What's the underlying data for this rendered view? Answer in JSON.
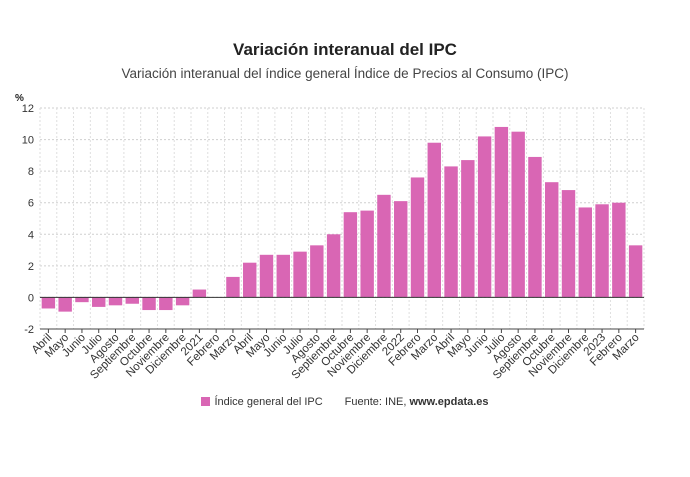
{
  "title": "Variación interanual del IPC",
  "subtitle": "Variación interanual del índice general Índice de Precios al Consumo (IPC)",
  "legend": {
    "label": "Índice general del IPC",
    "color": "#d966b4"
  },
  "source": {
    "prefix": "Fuente: INE, ",
    "site": "www.epdata.es"
  },
  "chart_data": {
    "type": "bar",
    "title": "Variación interanual del IPC",
    "ylabel": "%",
    "xlabel": "",
    "ylim": [
      -2,
      12
    ],
    "yticks": [
      -2,
      0,
      2,
      4,
      6,
      8,
      10,
      12
    ],
    "grid": true,
    "categories": [
      "Abril",
      "Mayo",
      "Junio",
      "Julio",
      "Agosto",
      "Septiembre",
      "Octubre",
      "Noviembre",
      "Diciembre",
      "2021",
      "Febrero",
      "Marzo",
      "Abril",
      "Mayo",
      "Junio",
      "Julio",
      "Agosto",
      "Septiembre",
      "Octubre",
      "Noviembre",
      "Diciembre",
      "2022",
      "Febrero",
      "Marzo",
      "Abril",
      "Mayo",
      "Junio",
      "Julio",
      "Agosto",
      "Septiembre",
      "Octubre",
      "Noviembre",
      "Diciembre",
      "2023",
      "Febrero",
      "Marzo"
    ],
    "series": [
      {
        "name": "Índice general del IPC",
        "color": "#d966b4",
        "values": [
          -0.7,
          -0.9,
          -0.3,
          -0.6,
          -0.5,
          -0.4,
          -0.8,
          -0.8,
          -0.5,
          0.5,
          0.0,
          1.3,
          2.2,
          2.7,
          2.7,
          2.9,
          3.3,
          4.0,
          5.4,
          5.5,
          6.5,
          6.1,
          7.6,
          9.8,
          8.3,
          8.7,
          10.2,
          10.8,
          10.5,
          8.9,
          7.3,
          6.8,
          5.7,
          5.9,
          6.0,
          3.3
        ]
      }
    ]
  }
}
